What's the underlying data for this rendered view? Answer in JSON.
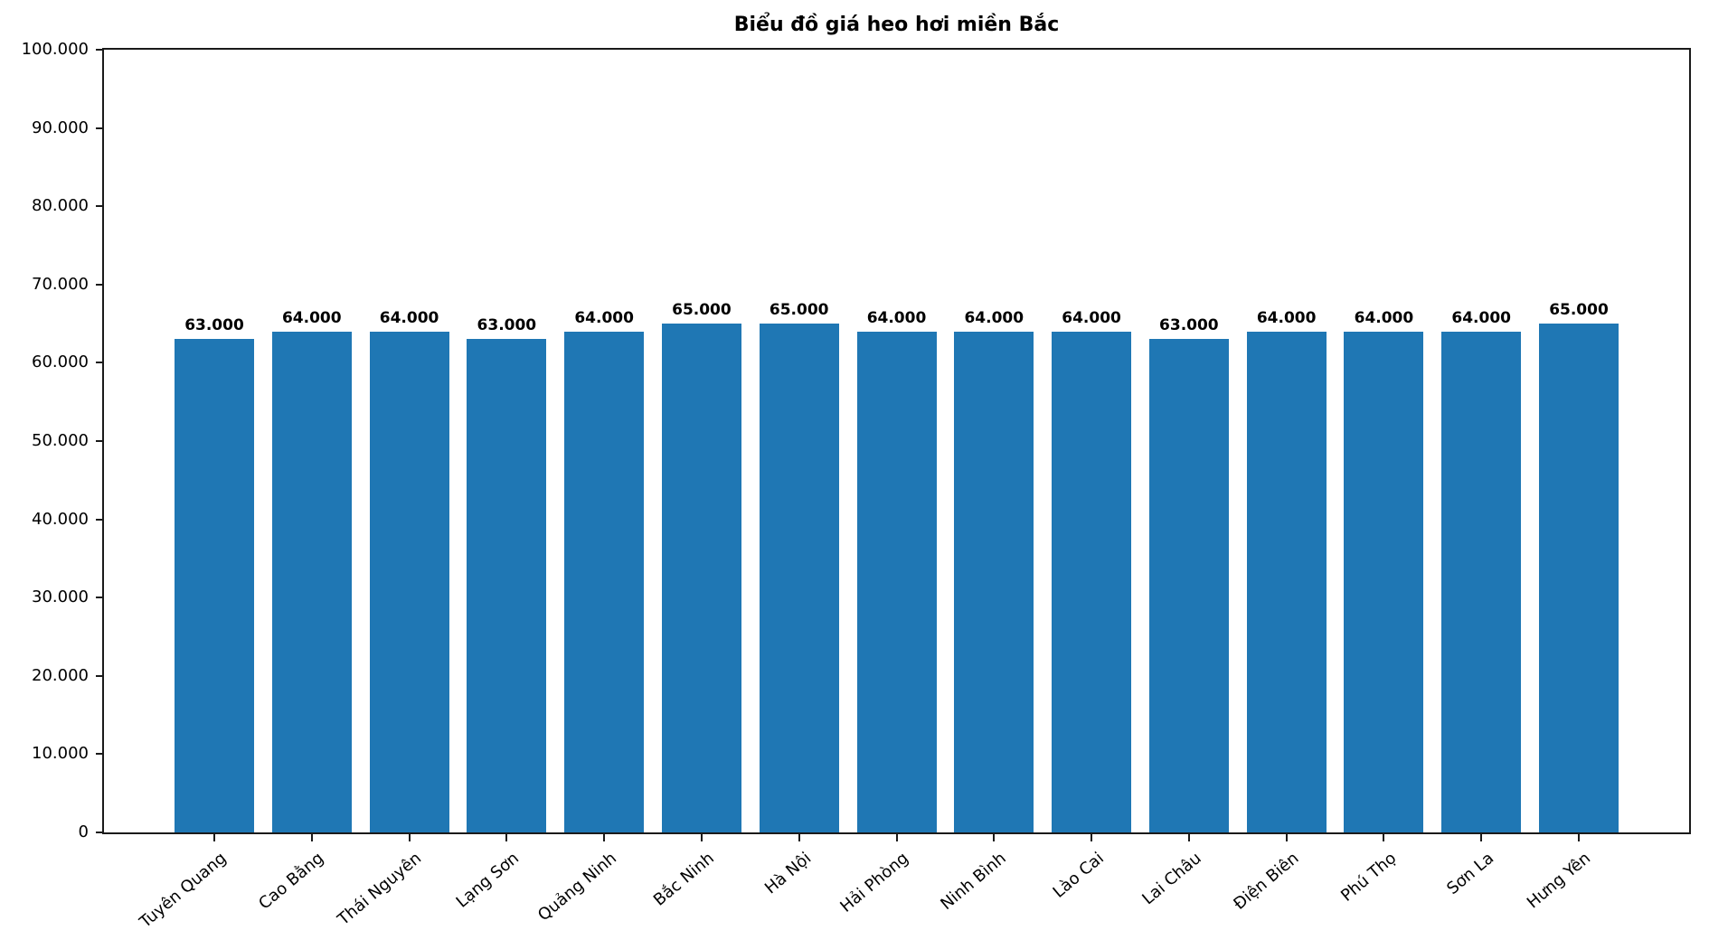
{
  "chart_data": {
    "type": "bar",
    "title": "Biểu đồ giá heo hơi miền Bắc",
    "categories": [
      "Tuyên Quang",
      "Cao Bằng",
      "Thái Nguyên",
      "Lạng Sơn",
      "Quảng Ninh",
      "Bắc Ninh",
      "Hà Nội",
      "Hải Phòng",
      "Ninh Bình",
      "Lào Cai",
      "Lai Châu",
      "Điện Biên",
      "Phú Thọ",
      "Sơn La",
      "Hưng Yên"
    ],
    "values": [
      63000,
      64000,
      64000,
      63000,
      64000,
      65000,
      65000,
      64000,
      64000,
      64000,
      63000,
      64000,
      64000,
      64000,
      65000
    ],
    "bar_value_labels": [
      "63.000",
      "64.000",
      "64.000",
      "63.000",
      "64.000",
      "65.000",
      "65.000",
      "64.000",
      "64.000",
      "64.000",
      "63.000",
      "64.000",
      "64.000",
      "64.000",
      "65.000"
    ],
    "xlabel": "",
    "ylabel": "",
    "ylim": [
      0,
      100000
    ],
    "ytick_step": 10000,
    "ytick_labels": [
      "0",
      "10.000",
      "20.000",
      "30.000",
      "40.000",
      "50.000",
      "60.000",
      "70.000",
      "80.000",
      "90.000",
      "100.000"
    ],
    "xtick_rotation_deg": 40,
    "grid": false,
    "legend_position": "none",
    "bar_color": "#1f77b4",
    "axis_color": "#1a1a1a",
    "text_color": "#000000",
    "background_color": "#ffffff"
  }
}
